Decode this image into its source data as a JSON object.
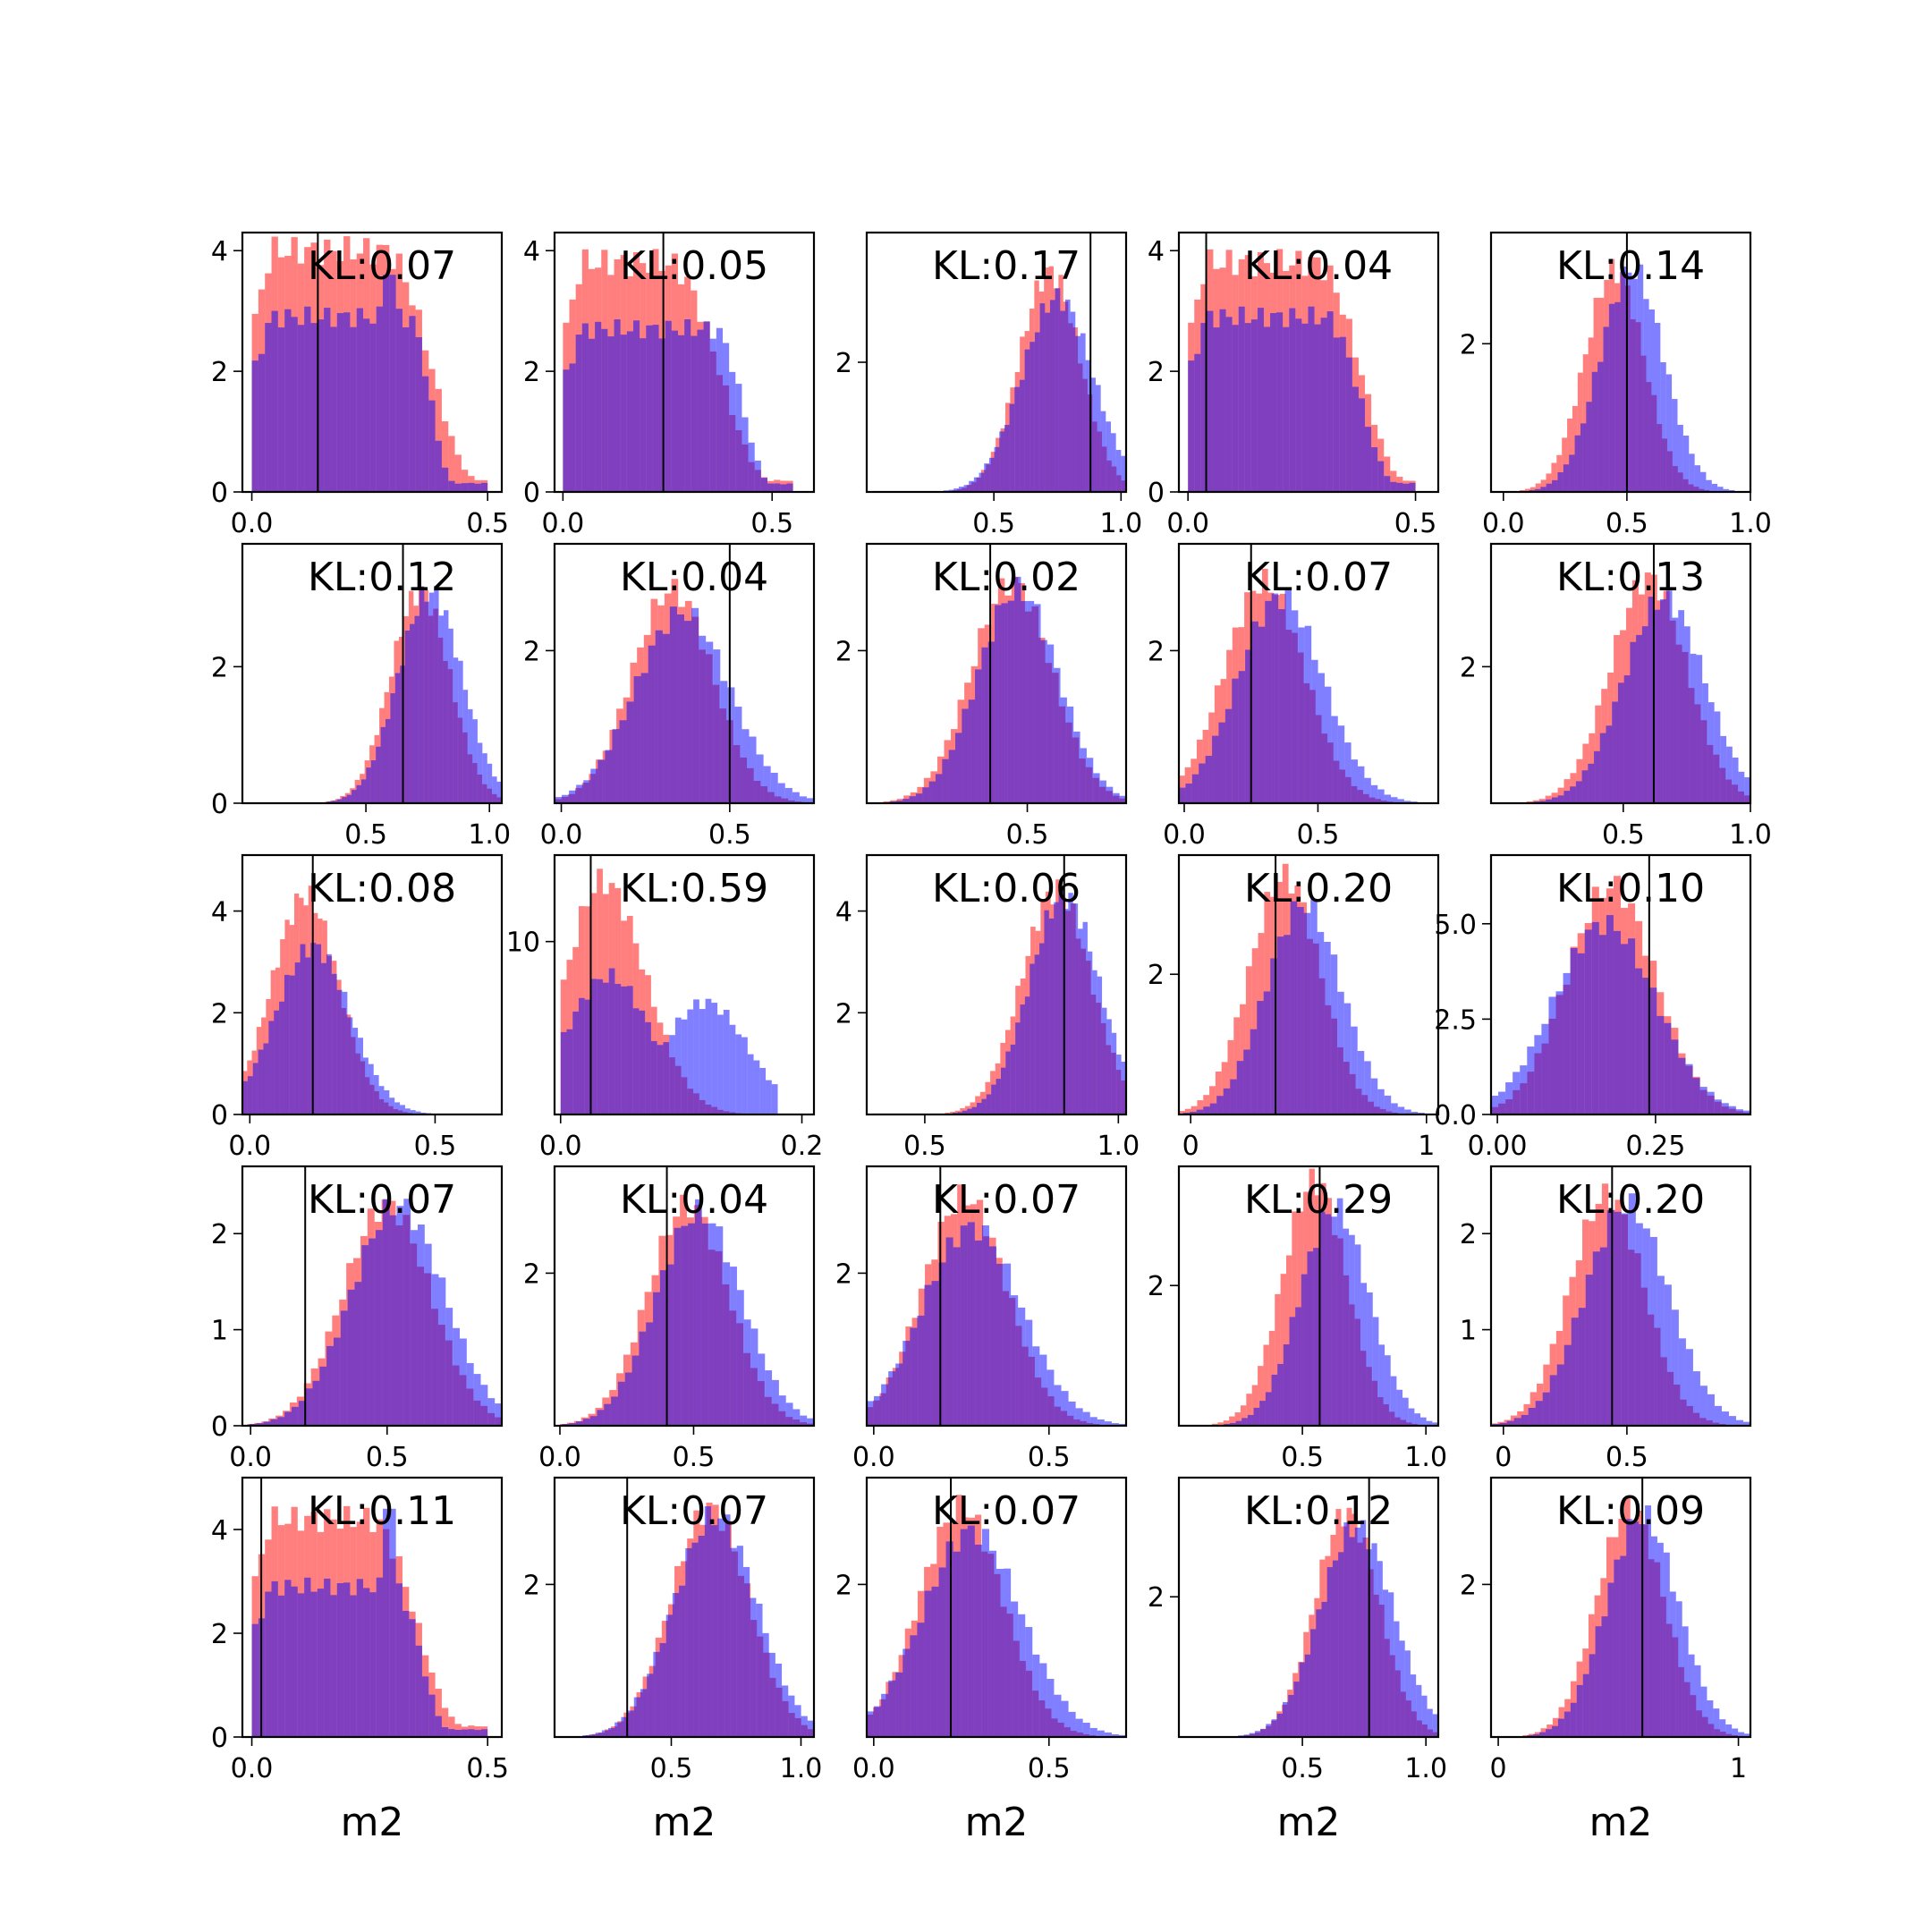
{
  "figure": {
    "type": "histogram-grid",
    "rows": 5,
    "cols": 5,
    "colors": {
      "series_a": "#ff0000",
      "series_b": "#0000ff",
      "overlap": "#8040c0",
      "vline": "#000000"
    },
    "series_opacity": 0.5
  },
  "chart_data": [
    {
      "row": 0,
      "col": 0,
      "type": "histogram",
      "annotation": "KL:0.07",
      "xlim": [
        -0.02,
        0.53
      ],
      "ylim": [
        0,
        4.3
      ],
      "xticks": [
        0.0,
        0.5
      ],
      "xtick_labels": [
        "0.0",
        "0.5"
      ],
      "yticks": [
        0,
        2,
        4
      ],
      "ytick_labels": [
        "0",
        "2",
        "4"
      ],
      "vline": 0.14,
      "red": {
        "shape": "uniform_taper",
        "range": [
          0.0,
          0.5
        ],
        "peak": 4.0,
        "fall_start": 0.28,
        "fall_end": 0.48,
        "spike": null
      },
      "blue": {
        "shape": "uniform_taper",
        "range": [
          0.0,
          0.5
        ],
        "peak": 2.9,
        "fall_start": 0.33,
        "fall_end": 0.43,
        "spike": [
          0.29,
          3.6
        ]
      },
      "xlabel": ""
    },
    {
      "row": 0,
      "col": 1,
      "type": "histogram",
      "annotation": "KL:0.05",
      "xlim": [
        -0.02,
        0.6
      ],
      "ylim": [
        0,
        4.3
      ],
      "xticks": [
        0.0,
        0.5
      ],
      "xtick_labels": [
        "0.0",
        "0.5"
      ],
      "yticks": [
        0,
        2,
        4
      ],
      "ytick_labels": [
        "0",
        "2",
        "4"
      ],
      "vline": 0.24,
      "red": {
        "shape": "uniform_taper",
        "range": [
          0.0,
          0.55
        ],
        "peak": 3.8,
        "fall_start": 0.25,
        "fall_end": 0.5,
        "spike": null
      },
      "blue": {
        "shape": "uniform_taper",
        "range": [
          0.0,
          0.55
        ],
        "peak": 2.7,
        "fall_start": 0.36,
        "fall_end": 0.5,
        "spike": null
      },
      "xlabel": ""
    },
    {
      "row": 0,
      "col": 2,
      "type": "histogram",
      "annotation": "KL:0.17",
      "xlim": [
        0.0,
        1.02
      ],
      "ylim": [
        0,
        4.0
      ],
      "xticks": [
        0.5,
        1.0
      ],
      "xtick_labels": [
        "0.5",
        "1.0"
      ],
      "yticks": [
        2
      ],
      "ytick_labels": [
        "2"
      ],
      "vline": 0.88,
      "red": {
        "shape": "normal",
        "mean": 0.72,
        "sd": 0.12,
        "peak": 3.4
      },
      "blue": {
        "shape": "normal",
        "mean": 0.75,
        "sd": 0.14,
        "peak": 3.0
      },
      "xlabel": ""
    },
    {
      "row": 0,
      "col": 3,
      "type": "histogram",
      "annotation": "KL:0.04",
      "xlim": [
        -0.02,
        0.55
      ],
      "ylim": [
        0,
        4.3
      ],
      "xticks": [
        0.0,
        0.5
      ],
      "xtick_labels": [
        "0.0",
        "0.5"
      ],
      "yticks": [
        0,
        2,
        4
      ],
      "ytick_labels": [
        "0",
        "2",
        "4"
      ],
      "vline": 0.04,
      "red": {
        "shape": "uniform_taper",
        "range": [
          0.0,
          0.5
        ],
        "peak": 3.8,
        "fall_start": 0.28,
        "fall_end": 0.48,
        "spike": null
      },
      "blue": {
        "shape": "uniform_taper",
        "range": [
          0.0,
          0.5
        ],
        "peak": 2.9,
        "fall_start": 0.3,
        "fall_end": 0.46,
        "spike": null
      },
      "xlabel": ""
    },
    {
      "row": 0,
      "col": 4,
      "type": "histogram",
      "annotation": "KL:0.14",
      "xlim": [
        -0.05,
        1.0
      ],
      "ylim": [
        0,
        3.5
      ],
      "xticks": [
        0.0,
        0.5,
        1.0
      ],
      "xtick_labels": [
        "0.0",
        "0.5",
        "1.0"
      ],
      "yticks": [
        2
      ],
      "ytick_labels": [
        "2"
      ],
      "vline": 0.5,
      "red": {
        "shape": "normal",
        "mean": 0.45,
        "sd": 0.12,
        "peak": 3.0
      },
      "blue": {
        "shape": "normal",
        "mean": 0.52,
        "sd": 0.13,
        "peak": 3.0
      },
      "xlabel": ""
    },
    {
      "row": 1,
      "col": 0,
      "type": "histogram",
      "annotation": "KL:0.12",
      "xlim": [
        0.0,
        1.05
      ],
      "ylim": [
        0,
        3.8
      ],
      "xticks": [
        0.5,
        1.0
      ],
      "xtick_labels": [
        "0.5",
        "1.0"
      ],
      "yticks": [
        0,
        2
      ],
      "ytick_labels": [
        "0",
        "2"
      ],
      "vline": 0.65,
      "red": {
        "shape": "normal",
        "mean": 0.72,
        "sd": 0.12,
        "peak": 3.1
      },
      "blue": {
        "shape": "normal",
        "mean": 0.76,
        "sd": 0.13,
        "peak": 3.1
      },
      "xlabel": ""
    },
    {
      "row": 1,
      "col": 1,
      "type": "histogram",
      "annotation": "KL:0.04",
      "xlim": [
        -0.02,
        0.75
      ],
      "ylim": [
        0,
        3.4
      ],
      "xticks": [
        0.0,
        0.5
      ],
      "xtick_labels": [
        "0.0",
        "0.5"
      ],
      "yticks": [
        2
      ],
      "ytick_labels": [
        "2"
      ],
      "vline": 0.5,
      "red": {
        "shape": "normal",
        "mean": 0.33,
        "sd": 0.12,
        "peak": 2.8
      },
      "blue": {
        "shape": "normal",
        "mean": 0.36,
        "sd": 0.14,
        "peak": 2.5
      },
      "xlabel": ""
    },
    {
      "row": 1,
      "col": 2,
      "type": "histogram",
      "annotation": "KL:0.02",
      "xlim": [
        -0.02,
        0.82
      ],
      "ylim": [
        0,
        3.4
      ],
      "xticks": [
        0.5
      ],
      "xtick_labels": [
        "0.5"
      ],
      "yticks": [
        2
      ],
      "ytick_labels": [
        "2"
      ],
      "vline": 0.38,
      "red": {
        "shape": "normal",
        "mean": 0.45,
        "sd": 0.13,
        "peak": 2.9
      },
      "blue": {
        "shape": "normal",
        "mean": 0.47,
        "sd": 0.13,
        "peak": 2.8
      },
      "xlabel": ""
    },
    {
      "row": 1,
      "col": 3,
      "type": "histogram",
      "annotation": "KL:0.07",
      "xlim": [
        -0.02,
        0.95
      ],
      "ylim": [
        0,
        3.4
      ],
      "xticks": [
        0.0,
        0.5
      ],
      "xtick_labels": [
        "0.0",
        "0.5"
      ],
      "yticks": [
        2
      ],
      "ytick_labels": [
        "2"
      ],
      "vline": 0.25,
      "red": {
        "shape": "normal",
        "mean": 0.3,
        "sd": 0.15,
        "peak": 2.9
      },
      "blue": {
        "shape": "normal",
        "mean": 0.36,
        "sd": 0.16,
        "peak": 2.7
      },
      "xlabel": ""
    },
    {
      "row": 1,
      "col": 4,
      "type": "histogram",
      "annotation": "KL:0.13",
      "xlim": [
        -0.02,
        1.0
      ],
      "ylim": [
        0,
        3.8
      ],
      "xticks": [
        0.5,
        1.0
      ],
      "xtick_labels": [
        "0.5",
        "1.0"
      ],
      "yticks": [
        2
      ],
      "ytick_labels": [
        "2"
      ],
      "vline": 0.62,
      "red": {
        "shape": "normal",
        "mean": 0.6,
        "sd": 0.15,
        "peak": 3.3
      },
      "blue": {
        "shape": "normal",
        "mean": 0.66,
        "sd": 0.16,
        "peak": 3.0
      },
      "xlabel": ""
    },
    {
      "row": 2,
      "col": 0,
      "type": "histogram",
      "annotation": "KL:0.08",
      "xlim": [
        -0.02,
        0.68
      ],
      "ylim": [
        0,
        5.1
      ],
      "xticks": [
        0.0,
        0.5
      ],
      "xtick_labels": [
        "0.0",
        "0.5"
      ],
      "yticks": [
        0,
        2,
        4
      ],
      "ytick_labels": [
        "0",
        "2",
        "4"
      ],
      "vline": 0.17,
      "red": {
        "shape": "normal",
        "mean": 0.15,
        "sd": 0.09,
        "peak": 4.3
      },
      "blue": {
        "shape": "normal",
        "mean": 0.17,
        "sd": 0.1,
        "peak": 3.3
      },
      "xlabel": ""
    },
    {
      "row": 2,
      "col": 1,
      "type": "histogram",
      "annotation": "KL:0.59",
      "xlim": [
        -0.005,
        0.21
      ],
      "ylim": [
        0,
        15
      ],
      "xticks": [
        0.0,
        0.2
      ],
      "xtick_labels": [
        "0.0",
        "0.2"
      ],
      "yticks": [
        10
      ],
      "ytick_labels": [
        "10"
      ],
      "vline": 0.025,
      "red": {
        "shape": "skew",
        "mode": 0.035,
        "left_sd": 0.03,
        "right_sd": 0.035,
        "peak": 13.5,
        "range": [
          0.0,
          0.18
        ]
      },
      "blue": {
        "shape": "bimodal",
        "m1": 0.04,
        "s1": 0.035,
        "p1": 8.0,
        "m2": 0.12,
        "s2": 0.035,
        "p2": 6.5,
        "range": [
          0.0,
          0.18
        ]
      },
      "xlabel": ""
    },
    {
      "row": 2,
      "col": 2,
      "type": "histogram",
      "annotation": "KL:0.06",
      "xlim": [
        0.35,
        1.02
      ],
      "ylim": [
        0,
        5.1
      ],
      "xticks": [
        0.5,
        1.0
      ],
      "xtick_labels": [
        "0.5",
        "1.0"
      ],
      "yticks": [
        2,
        4
      ],
      "ytick_labels": [
        "2",
        "4"
      ],
      "vline": 0.86,
      "red": {
        "shape": "normal",
        "mean": 0.84,
        "sd": 0.09,
        "peak": 4.4
      },
      "blue": {
        "shape": "normal",
        "mean": 0.86,
        "sd": 0.09,
        "peak": 4.3
      },
      "xlabel": ""
    },
    {
      "row": 2,
      "col": 3,
      "type": "histogram",
      "annotation": "KL:0.20",
      "xlim": [
        -0.05,
        1.05
      ],
      "ylim": [
        0,
        3.7
      ],
      "xticks": [
        0.0,
        1.0
      ],
      "xtick_labels": [
        "0",
        "1"
      ],
      "yticks": [
        2
      ],
      "ytick_labels": [
        "2"
      ],
      "vline": 0.36,
      "red": {
        "shape": "normal",
        "mean": 0.4,
        "sd": 0.15,
        "peak": 3.4
      },
      "blue": {
        "shape": "normal",
        "mean": 0.48,
        "sd": 0.16,
        "peak": 3.0
      },
      "xlabel": ""
    },
    {
      "row": 2,
      "col": 4,
      "type": "histogram",
      "annotation": "KL:0.10",
      "xlim": [
        -0.01,
        0.4
      ],
      "ylim": [
        0,
        6.8
      ],
      "xticks": [
        0.0,
        0.25
      ],
      "xtick_labels": [
        "0.00",
        "0.25"
      ],
      "yticks": [
        0.0,
        2.5,
        5.0
      ],
      "ytick_labels": [
        "0.0",
        "2.5",
        "5.0"
      ],
      "vline": 0.24,
      "red": {
        "shape": "normal",
        "mean": 0.18,
        "sd": 0.07,
        "peak": 6.0
      },
      "blue": {
        "shape": "normal",
        "mean": 0.17,
        "sd": 0.08,
        "peak": 5.0
      },
      "xlabel": ""
    },
    {
      "row": 3,
      "col": 0,
      "type": "histogram",
      "annotation": "KL:0.07",
      "xlim": [
        -0.03,
        0.92
      ],
      "ylim": [
        0,
        2.7
      ],
      "xticks": [
        0.0,
        0.5
      ],
      "xtick_labels": [
        "0.0",
        "0.5"
      ],
      "yticks": [
        0,
        1,
        2
      ],
      "ytick_labels": [
        "0",
        "1",
        "2"
      ],
      "vline": 0.2,
      "red": {
        "shape": "normal",
        "mean": 0.5,
        "sd": 0.16,
        "peak": 2.3
      },
      "blue": {
        "shape": "normal",
        "mean": 0.54,
        "sd": 0.17,
        "peak": 2.3
      },
      "xlabel": ""
    },
    {
      "row": 3,
      "col": 1,
      "type": "histogram",
      "annotation": "KL:0.04",
      "xlim": [
        -0.02,
        0.95
      ],
      "ylim": [
        0,
        3.4
      ],
      "xticks": [
        0.0,
        0.5
      ],
      "xtick_labels": [
        "0.0",
        "0.5"
      ],
      "yticks": [
        2
      ],
      "ytick_labels": [
        "2"
      ],
      "vline": 0.4,
      "red": {
        "shape": "normal",
        "mean": 0.48,
        "sd": 0.15,
        "peak": 2.9
      },
      "blue": {
        "shape": "normal",
        "mean": 0.52,
        "sd": 0.16,
        "peak": 2.8
      },
      "xlabel": ""
    },
    {
      "row": 3,
      "col": 2,
      "type": "histogram",
      "annotation": "KL:0.07",
      "xlim": [
        -0.02,
        0.72
      ],
      "ylim": [
        0,
        3.4
      ],
      "xticks": [
        0.0,
        0.5
      ],
      "xtick_labels": [
        "0.0",
        "0.5"
      ],
      "yticks": [
        2
      ],
      "ytick_labels": [
        "2"
      ],
      "vline": 0.19,
      "red": {
        "shape": "normal",
        "mean": 0.26,
        "sd": 0.12,
        "peak": 3.0
      },
      "blue": {
        "shape": "normal",
        "mean": 0.28,
        "sd": 0.14,
        "peak": 2.6
      },
      "xlabel": ""
    },
    {
      "row": 3,
      "col": 3,
      "type": "histogram",
      "annotation": "KL:0.29",
      "xlim": [
        0.0,
        1.05
      ],
      "ylim": [
        0,
        3.7
      ],
      "xticks": [
        0.5,
        1.0
      ],
      "xtick_labels": [
        "0.5",
        "1.0"
      ],
      "yticks": [
        2
      ],
      "ytick_labels": [
        "2"
      ],
      "vline": 0.57,
      "red": {
        "shape": "normal",
        "mean": 0.55,
        "sd": 0.13,
        "peak": 3.5
      },
      "blue": {
        "shape": "normal",
        "mean": 0.63,
        "sd": 0.14,
        "peak": 3.1
      },
      "xlabel": ""
    },
    {
      "row": 3,
      "col": 4,
      "type": "histogram",
      "annotation": "KL:0.20",
      "xlim": [
        -0.05,
        1.0
      ],
      "ylim": [
        0,
        2.7
      ],
      "xticks": [
        0.0,
        0.5
      ],
      "xtick_labels": [
        "0",
        "0.5"
      ],
      "yticks": [
        1,
        2
      ],
      "ytick_labels": [
        "1",
        "2"
      ],
      "vline": 0.44,
      "red": {
        "shape": "normal",
        "mean": 0.42,
        "sd": 0.15,
        "peak": 2.4
      },
      "blue": {
        "shape": "normal",
        "mean": 0.5,
        "sd": 0.17,
        "peak": 2.3
      },
      "xlabel": ""
    },
    {
      "row": 4,
      "col": 0,
      "type": "histogram",
      "annotation": "KL:0.11",
      "xlim": [
        -0.02,
        0.53
      ],
      "ylim": [
        0,
        5.0
      ],
      "xticks": [
        0.0,
        0.5
      ],
      "xtick_labels": [
        "0.0",
        "0.5"
      ],
      "yticks": [
        0,
        2,
        4
      ],
      "ytick_labels": [
        "0",
        "2",
        "4"
      ],
      "vline": 0.02,
      "red": {
        "shape": "uniform_taper",
        "range": [
          0.0,
          0.5
        ],
        "peak": 4.2,
        "fall_start": 0.25,
        "fall_end": 0.45,
        "spike": null
      },
      "blue": {
        "shape": "uniform_taper",
        "range": [
          0.0,
          0.5
        ],
        "peak": 2.9,
        "fall_start": 0.3,
        "fall_end": 0.42,
        "spike": [
          0.29,
          4.4
        ]
      },
      "xlabel": "m2"
    },
    {
      "row": 4,
      "col": 1,
      "type": "histogram",
      "annotation": "KL:0.07",
      "xlim": [
        0.05,
        1.05
      ],
      "ylim": [
        0,
        3.4
      ],
      "xticks": [
        0.5,
        1.0
      ],
      "xtick_labels": [
        "0.5",
        "1.0"
      ],
      "yticks": [
        2
      ],
      "ytick_labels": [
        "2"
      ],
      "vline": 0.33,
      "red": {
        "shape": "normal",
        "mean": 0.65,
        "sd": 0.15,
        "peak": 3.0
      },
      "blue": {
        "shape": "normal",
        "mean": 0.67,
        "sd": 0.16,
        "peak": 2.9
      },
      "xlabel": "m2"
    },
    {
      "row": 4,
      "col": 2,
      "type": "histogram",
      "annotation": "KL:0.07",
      "xlim": [
        -0.02,
        0.72
      ],
      "ylim": [
        0,
        3.4
      ],
      "xticks": [
        0.0,
        0.5
      ],
      "xtick_labels": [
        "0.0",
        "0.5"
      ],
      "yticks": [
        2
      ],
      "ytick_labels": [
        "2"
      ],
      "vline": 0.22,
      "red": {
        "shape": "normal",
        "mean": 0.25,
        "sd": 0.12,
        "peak": 3.0
      },
      "blue": {
        "shape": "normal",
        "mean": 0.28,
        "sd": 0.14,
        "peak": 2.7
      },
      "xlabel": "m2"
    },
    {
      "row": 4,
      "col": 3,
      "type": "histogram",
      "annotation": "KL:0.12",
      "xlim": [
        0.0,
        1.05
      ],
      "ylim": [
        0,
        3.7
      ],
      "xticks": [
        0.5,
        1.0
      ],
      "xtick_labels": [
        "0.5",
        "1.0"
      ],
      "yticks": [
        2
      ],
      "ytick_labels": [
        "2"
      ],
      "vline": 0.77,
      "red": {
        "shape": "normal",
        "mean": 0.68,
        "sd": 0.13,
        "peak": 3.2
      },
      "blue": {
        "shape": "normal",
        "mean": 0.72,
        "sd": 0.15,
        "peak": 3.0
      },
      "xlabel": "m2"
    },
    {
      "row": 4,
      "col": 4,
      "type": "histogram",
      "annotation": "KL:0.09",
      "xlim": [
        -0.03,
        1.05
      ],
      "ylim": [
        0,
        3.4
      ],
      "xticks": [
        0.0,
        1.0
      ],
      "xtick_labels": [
        "0",
        "1"
      ],
      "yticks": [
        2
      ],
      "ytick_labels": [
        "2"
      ],
      "vline": 0.6,
      "red": {
        "shape": "normal",
        "mean": 0.55,
        "sd": 0.14,
        "peak": 3.0
      },
      "blue": {
        "shape": "normal",
        "mean": 0.6,
        "sd": 0.15,
        "peak": 2.9
      },
      "xlabel": "m2"
    }
  ]
}
